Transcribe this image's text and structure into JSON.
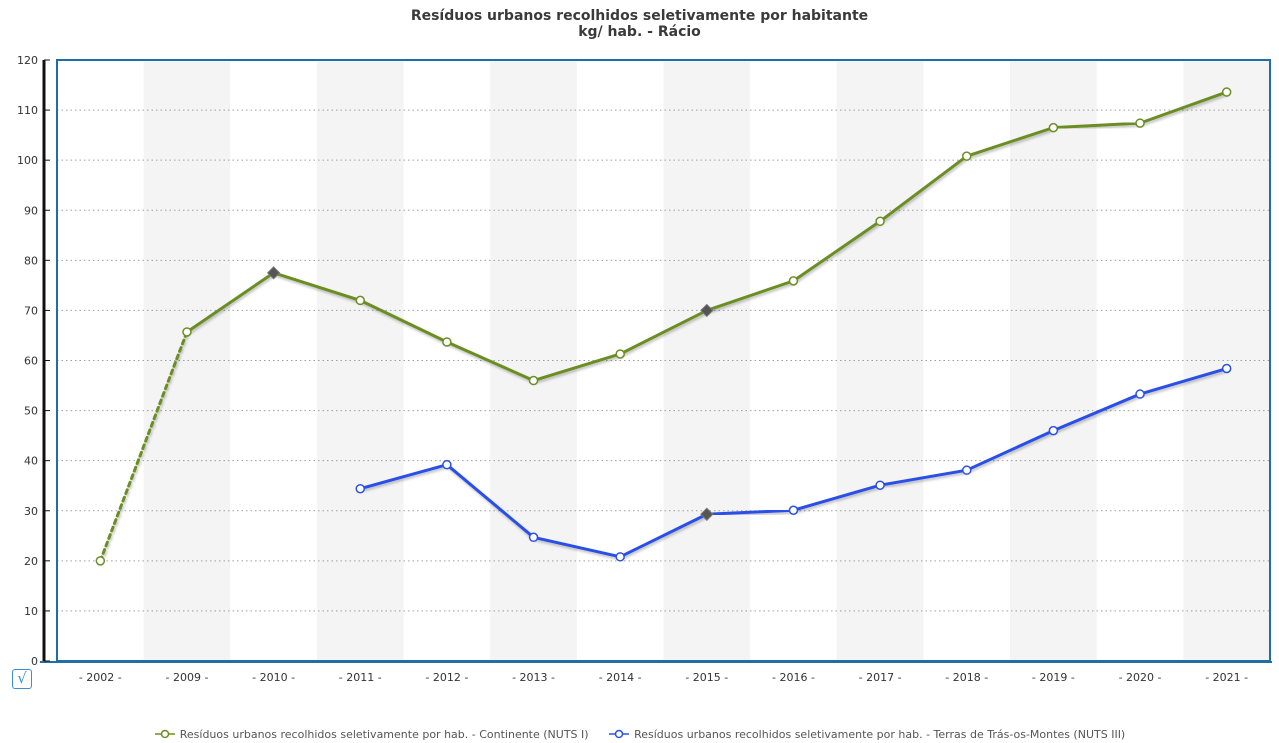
{
  "chart_data": {
    "type": "line",
    "title": "Resíduos urbanos recolhidos seletivamente por habitante",
    "subtitle": "kg/ hab. - Rácio",
    "categories": [
      "2002",
      "2009",
      "2010",
      "2011",
      "2012",
      "2013",
      "2014",
      "2015",
      "2016",
      "2017",
      "2018",
      "2019",
      "2020",
      "2021"
    ],
    "category_labels": [
      "- 2002 -",
      "- 2009 -",
      "- 2010 -",
      "- 2011 -",
      "- 2012 -",
      "- 2013 -",
      "- 2014 -",
      "- 2015 -",
      "- 2016 -",
      "- 2017 -",
      "- 2018 -",
      "- 2019 -",
      "- 2020 -",
      "- 2021 -"
    ],
    "ylim": [
      0,
      120
    ],
    "yticks": [
      "0",
      "10",
      "20",
      "30",
      "40",
      "50",
      "60",
      "70",
      "80",
      "90",
      "100",
      "110",
      "120"
    ],
    "grid": true,
    "legend_position": "bottom",
    "series": [
      {
        "name": "Resíduos urbanos recolhidos seletivamente por hab. - Continente (NUTS I)",
        "color": "#6b8e23",
        "values": [
          20,
          65.7,
          77.5,
          72.0,
          63.7,
          56.0,
          61.3,
          70.0,
          75.9,
          87.8,
          100.8,
          106.5,
          107.4,
          113.6
        ],
        "dashed_segments_to_index": 1,
        "diamond_markers_at": [
          2,
          7
        ]
      },
      {
        "name": "Resíduos urbanos recolhidos seletivamente por hab. - Terras de Trás-os-Montes (NUTS III)",
        "color": "#2b50e8",
        "values": [
          null,
          null,
          null,
          34.4,
          39.2,
          24.7,
          20.8,
          29.3,
          30.1,
          35.1,
          38.1,
          46.0,
          53.3,
          58.4
        ],
        "diamond_markers_at": [
          7
        ]
      }
    ]
  },
  "controls": {
    "checkbox_glyph": "√"
  }
}
